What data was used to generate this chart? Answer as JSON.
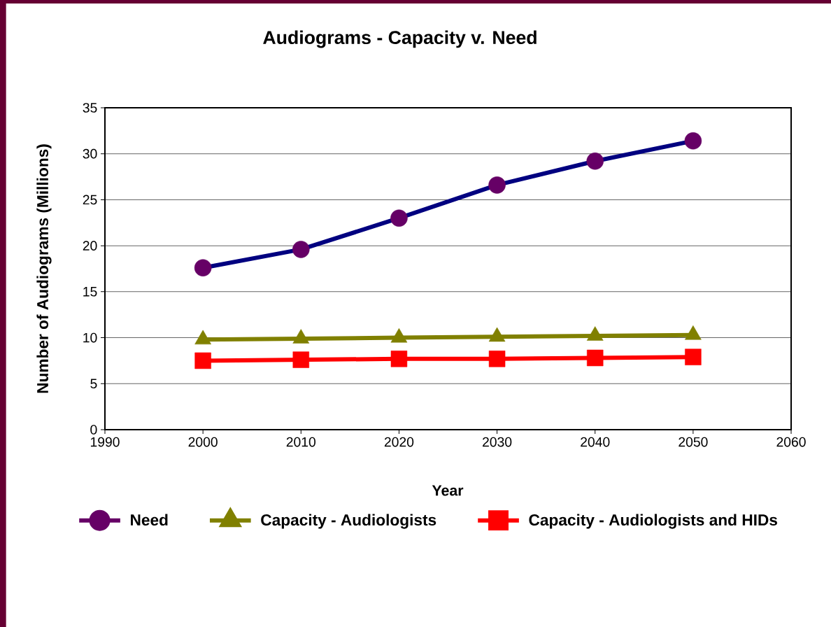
{
  "chart_data": {
    "type": "line",
    "title": "Audiograms - Capacity v. Need",
    "xlabel": "Year",
    "ylabel": "Number of Audiograms (Millions)",
    "x": [
      2000,
      2010,
      2020,
      2030,
      2040,
      2050
    ],
    "series": [
      {
        "name": "Need",
        "color": "#000080",
        "colors": [
          "#660066",
          "#660066",
          "#660066",
          "#660066",
          "#660066",
          "#660066"
        ],
        "marker": "circle",
        "values": [
          17.6,
          19.6,
          23.0,
          26.6,
          29.2,
          31.4
        ]
      },
      {
        "name": "Capacity - Audiologists",
        "color": "#808000",
        "marker": "triangle",
        "values": [
          9.8,
          9.9,
          10.0,
          10.1,
          10.2,
          10.3
        ]
      },
      {
        "name": "Capacity - Audiologists and HIDs",
        "color": "#ff0000",
        "marker": "square",
        "values": [
          7.5,
          7.6,
          7.7,
          7.7,
          7.8,
          7.9
        ]
      }
    ],
    "xlim": [
      1990,
      2060
    ],
    "xticks": [
      1990,
      2000,
      2010,
      2020,
      2030,
      2040,
      2050,
      2060
    ],
    "ylim": [
      0,
      35
    ],
    "yticks": [
      0,
      5,
      10,
      15,
      20,
      25,
      30,
      35
    ],
    "grid": "y",
    "legend": "bottom"
  }
}
